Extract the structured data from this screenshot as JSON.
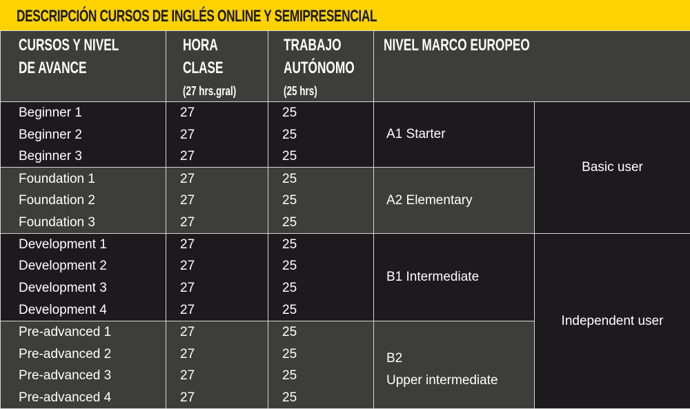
{
  "title": "DESCRIPCIÓN CURSOS DE INGLÉS ONLINE Y SEMIPRESENCIAL",
  "colors": {
    "title_bg": "#ffd200",
    "header_bg": "#3d3d3c",
    "dark_row": "#1c1a1d",
    "gray_row": "#3d3d3c"
  },
  "headers": {
    "course": [
      "CURSOS Y NIVEL",
      "DE AVANCE"
    ],
    "hours": [
      "HORA",
      "CLASE"
    ],
    "hours_sub": "(27 hrs.gral)",
    "autonomous": [
      "TRABAJO",
      "AUTÓNOMO"
    ],
    "autonomous_sub": "(25 hrs)",
    "level": "NIVEL MARCO EUROPEO"
  },
  "groups": [
    {
      "level": [
        "A1 Starter"
      ],
      "shade": "dark",
      "rows": [
        [
          "Beginner 1",
          "27",
          "25"
        ],
        [
          "Beginner 2",
          "27",
          "25"
        ],
        [
          "Beginner 3",
          "27",
          "25"
        ]
      ]
    },
    {
      "level": [
        "A2 Elementary"
      ],
      "shade": "gray",
      "rows": [
        [
          "Foundation 1",
          "27",
          "25"
        ],
        [
          "Foundation 2",
          "27",
          "25"
        ],
        [
          "Foundation 3",
          "27",
          "25"
        ]
      ]
    },
    {
      "level": [
        "B1 Intermediate"
      ],
      "shade": "dark",
      "rows": [
        [
          "Development 1",
          "27",
          "25"
        ],
        [
          "Development 2",
          "27",
          "25"
        ],
        [
          "Development 3",
          "27",
          "25"
        ],
        [
          "Development 4",
          "27",
          "25"
        ]
      ]
    },
    {
      "level": [
        "B2",
        "Upper intermediate"
      ],
      "shade": "gray",
      "rows": [
        [
          "Pre-advanced 1",
          "27",
          "25"
        ],
        [
          "Pre-advanced 2",
          "27",
          "25"
        ],
        [
          "Pre-advanced 3",
          "27",
          "25"
        ],
        [
          "Pre-advanced 4",
          "27",
          "25"
        ]
      ]
    }
  ],
  "users": [
    {
      "label": "Basic user",
      "groups": 2
    },
    {
      "label": "Independent user",
      "groups": 2
    }
  ]
}
